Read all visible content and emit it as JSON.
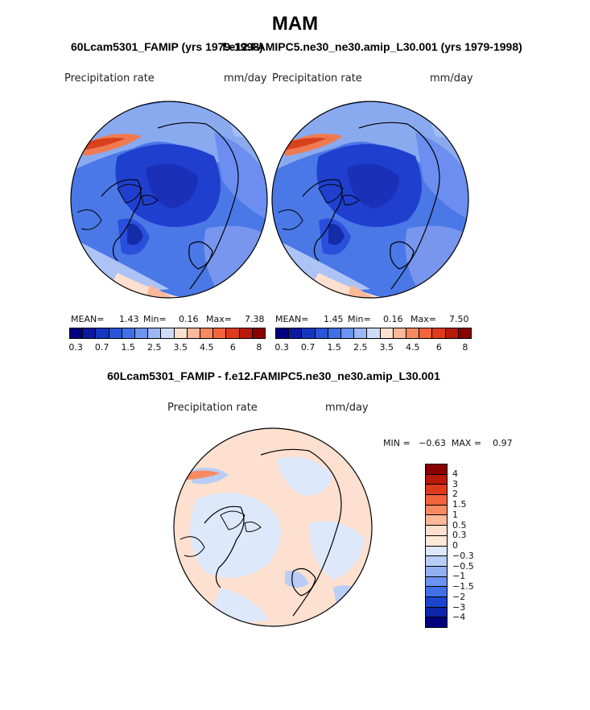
{
  "main_title": "MAM",
  "panel_left": {
    "subtitle": "60Lcam5301_FAMIP (yrs 1979-1998)",
    "left_label": "Precipitation rate",
    "right_label": "mm/day",
    "stats": {
      "mean_label": "MEAN=",
      "mean": "1.43",
      "min_label": "Min=",
      "min": "0.16",
      "max_label": "Max=",
      "max": "7.38"
    }
  },
  "panel_right": {
    "subtitle": "f.e12.FAMIPC5.ne30_ne30.amip_L30.001 (yrs 1979-1998)",
    "left_label": "Precipitation rate",
    "right_label": "mm/day",
    "stats": {
      "mean_label": "MEAN=",
      "mean": "1.45",
      "min_label": "Min=",
      "min": "0.16",
      "max_label": "Max=",
      "max": "7.50"
    }
  },
  "colorbar_top": {
    "colors": [
      "#00007f",
      "#0a1a9e",
      "#1536bf",
      "#2a55d8",
      "#4070e8",
      "#6b93ef",
      "#9bb7f5",
      "#cfdcf9",
      "#fde0cf",
      "#fbb89a",
      "#f88a62",
      "#f2643c",
      "#de3a1c",
      "#b81a0a",
      "#8a0000"
    ],
    "labels": [
      "0.3",
      "0.7",
      "1.5",
      "2.5",
      "3.5",
      "4.5",
      "6",
      "8"
    ]
  },
  "panel_diff": {
    "subtitle": "60Lcam5301_FAMIP - f.e12.FAMIPC5.ne30_ne30.amip_L30.001",
    "left_label": "Precipitation rate",
    "right_label": "mm/day",
    "min_max": "MIN =   −0.63  MAX =    0.97"
  },
  "colorbar_diff": {
    "colors": [
      "#8a0000",
      "#b81a0a",
      "#de3a1c",
      "#f2643c",
      "#f88a62",
      "#fbb89a",
      "#fde0cf",
      "#ffe8d8",
      "#dde8fb",
      "#b9cdf6",
      "#93b1f1",
      "#6b93ef",
      "#4070e8",
      "#1d44cc",
      "#0e25a8",
      "#00007f"
    ],
    "labels": [
      "4",
      "3",
      "2",
      "1.5",
      "1",
      "0.5",
      "0.3",
      "0",
      "−0.3",
      "−0.5",
      "−1",
      "−1.5",
      "−2",
      "−3",
      "−4"
    ]
  }
}
